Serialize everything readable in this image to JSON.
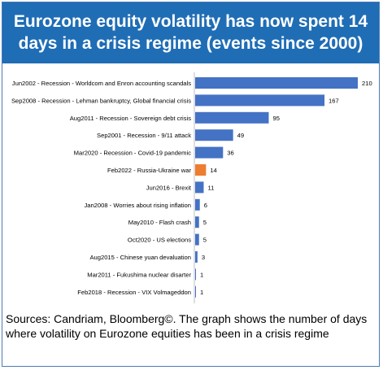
{
  "title": "Eurozone equity volatility has now spent 14 days in a crisis regime (events since 2000)",
  "sources": "Sources: Candriam, Bloomberg©. The graph shows the number of days where volatility on Eurozone equities has been in a crisis regime",
  "colors": {
    "header_bg": "#1f6db5",
    "bar": "#4472c4",
    "highlight": "#ed7d31"
  },
  "chart_data": {
    "type": "bar",
    "orientation": "horizontal",
    "categories": [
      "Jun2002 - Recession - Worldcom and Enron accounting scandals",
      "Sep2008 - Recession - Lehman bankruptcy, Global financial crisis",
      "Aug2011 - Recession - Sovereign debt crisis",
      "Sep2001 - Recession - 9/11 attack",
      "Mar2020 - Recession - Covid-19 pandemic",
      "Feb2022 - Russia-Ukraine war",
      "Jun2016 - Brexit",
      "Jan2008 - Worries about rising inflation",
      "May2010 - Flash crash",
      "Oct2020 - US elections",
      "Aug2015 - Chinese yuan devaluation",
      "Mar2011 - Fukushima nuclear disarter",
      "Feb2018 - Recession - VIX Volmageddon"
    ],
    "values": [
      210,
      167,
      95,
      49,
      36,
      14,
      11,
      6,
      5,
      5,
      3,
      1,
      1
    ],
    "highlight_category": "Feb2022 - Russia-Ukraine war",
    "xlim": [
      0,
      210
    ],
    "grid": false
  }
}
